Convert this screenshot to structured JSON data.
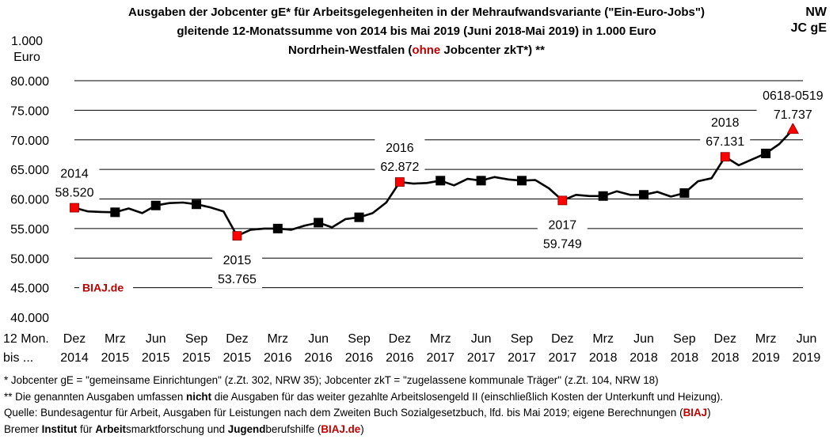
{
  "title": {
    "line1": "Ausgaben der Jobcenter gE* für Arbeitsgelegenheiten in der Mehraufwandsvariante (\"Ein-Euro-Jobs\")",
    "line2": "gleitende 12-Monatssumme von 2014 bis Mai 2019 (Juni 2018-Mai 2019) in 1.000 Euro",
    "line3_pre": "Nordrhein-Westfalen (",
    "line3_red": "ohne",
    "line3_post": " Jobcenter zkT*) **"
  },
  "corner": {
    "line1": "NW",
    "line2": "JC gE"
  },
  "y_unit": {
    "line1": "1.000",
    "line2": "Euro"
  },
  "x_prefix": {
    "line1": "12 Mon.",
    "line2": "bis ..."
  },
  "watermark": "BIAJ.de",
  "colors": {
    "line": "#000000",
    "highlight": "#ff0000",
    "grid": "#000000",
    "brand": "#c00000"
  },
  "footnotes": {
    "f1": "*    Jobcenter gE = \"gemeinsame Einrichtungen\" (z.Zt. 302, NRW 35); Jobcenter zkT = \"zugelassene kommunale Träger\" (z.Zt. 104, NRW 18)",
    "f2_a": "** Die genannten Ausgaben umfassen ",
    "f2_b": "nicht",
    "f2_c": " die Ausgaben für das weiter gezahlte Arbeitslosengeld II (einschließlich Kosten der Unterkunft und Heizung).",
    "f3_a": "Quelle: Bundesagentur für Arbeit, Ausgaben für Leistungen nach dem Zweiten Buch Sozialgesetzbuch, lfd. bis Mai 2019; eigene Berechnungen (",
    "f3_b": "BIAJ",
    "f3_c": ")",
    "f4_a": "Bremer ",
    "f4_b": "Institut",
    "f4_c": " für ",
    "f4_d": "Arbeit",
    "f4_e": "smarktforschung und ",
    "f4_f": "Jugend",
    "f4_g": "berufshilfe (",
    "f4_h": "BIAJ.de",
    "f4_i": ")"
  },
  "chart_data": {
    "type": "line",
    "ylim": [
      40000,
      80000
    ],
    "yticks": [
      "40.000",
      "45.000",
      "50.000",
      "55.000",
      "60.000",
      "65.000",
      "70.000",
      "75.000",
      "80.000"
    ],
    "grid": true,
    "xtick_labels": [
      [
        "Dez",
        "2014"
      ],
      [
        "Mrz",
        "2015"
      ],
      [
        "Jun",
        "2015"
      ],
      [
        "Sep",
        "2015"
      ],
      [
        "Dez",
        "2015"
      ],
      [
        "Mrz",
        "2016"
      ],
      [
        "Jun",
        "2016"
      ],
      [
        "Sep",
        "2016"
      ],
      [
        "Dez",
        "2016"
      ],
      [
        "Mrz",
        "2017"
      ],
      [
        "Jun",
        "2017"
      ],
      [
        "Sep",
        "2017"
      ],
      [
        "Dez",
        "2017"
      ],
      [
        "Mrz",
        "2018"
      ],
      [
        "Jun",
        "2018"
      ],
      [
        "Sep",
        "2018"
      ],
      [
        "Dez",
        "2018"
      ],
      [
        "Mrz",
        "2019"
      ],
      [
        "Jun",
        "2019"
      ]
    ],
    "x": [
      "2014-12",
      "2015-01",
      "2015-02",
      "2015-03",
      "2015-04",
      "2015-05",
      "2015-06",
      "2015-07",
      "2015-08",
      "2015-09",
      "2015-10",
      "2015-11",
      "2015-12",
      "2016-01",
      "2016-02",
      "2016-03",
      "2016-04",
      "2016-05",
      "2016-06",
      "2016-07",
      "2016-08",
      "2016-09",
      "2016-10",
      "2016-11",
      "2016-12",
      "2017-01",
      "2017-02",
      "2017-03",
      "2017-04",
      "2017-05",
      "2017-06",
      "2017-07",
      "2017-08",
      "2017-09",
      "2017-10",
      "2017-11",
      "2017-12",
      "2018-01",
      "2018-02",
      "2018-03",
      "2018-04",
      "2018-05",
      "2018-06",
      "2018-07",
      "2018-08",
      "2018-09",
      "2018-10",
      "2018-11",
      "2018-12",
      "2019-01",
      "2019-02",
      "2019-03",
      "2019-04",
      "2019-05"
    ],
    "values": [
      58520,
      57900,
      57800,
      57750,
      58400,
      57600,
      58900,
      59300,
      59400,
      59100,
      58600,
      57900,
      53765,
      54800,
      55000,
      55000,
      54800,
      55500,
      56000,
      55200,
      56600,
      56900,
      57600,
      59400,
      62872,
      62600,
      62700,
      63100,
      62300,
      63400,
      63100,
      63700,
      63300,
      63100,
      63200,
      61800,
      59749,
      60700,
      60500,
      60500,
      61300,
      60700,
      60700,
      61200,
      60400,
      61000,
      63000,
      63500,
      67131,
      65700,
      66700,
      67700,
      69300,
      71737
    ],
    "square_markers": [
      "2015-03",
      "2015-06",
      "2015-09",
      "2016-03",
      "2016-06",
      "2016-09",
      "2017-03",
      "2017-06",
      "2017-09",
      "2018-03",
      "2018-06",
      "2018-09",
      "2019-03"
    ],
    "red_square_markers": [
      "2014-12",
      "2015-12",
      "2016-12",
      "2017-12",
      "2018-12"
    ],
    "red_triangle_marker": "2019-05",
    "annotations": [
      {
        "x": "2014-12",
        "year": "2014",
        "value": "58.520",
        "position": "above"
      },
      {
        "x": "2015-12",
        "year": "2015",
        "value": "53.765",
        "position": "below"
      },
      {
        "x": "2016-12",
        "year": "2016",
        "value": "62.872",
        "position": "above"
      },
      {
        "x": "2017-12",
        "year": "2017",
        "value": "59.749",
        "position": "below"
      },
      {
        "x": "2018-12",
        "year": "2018",
        "value": "67.131",
        "position": "above"
      },
      {
        "x": "2019-05",
        "year": "0618-0519",
        "value": "71.737",
        "position": "above"
      }
    ]
  }
}
